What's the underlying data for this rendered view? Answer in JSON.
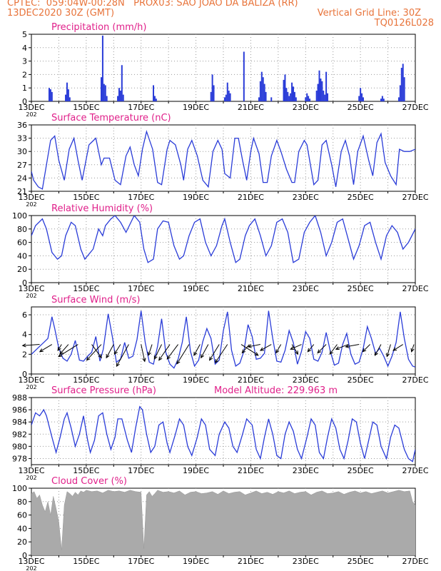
{
  "header": {
    "line1": "CPTEC:  059:04W-00:28N   PROX03: SAO JOAO DA BALIZA (RR)",
    "line2_left": "13DEC2020 30Z (GMT)",
    "line2_right": "Vertical Grid Line: 30Z",
    "line3_right": "TQ0126L028"
  },
  "colors": {
    "header": "#e8743b",
    "title": "#e0208a",
    "series": "#2a3cd8",
    "cloud": "#aaaaaa",
    "wind": "#000000"
  },
  "date_ticks": [
    "13DEC",
    "15DEC",
    "17DEC",
    "19DEC",
    "21DEC",
    "23DEC",
    "25DEC",
    "27DEC"
  ],
  "year_fragment": "202",
  "chart_data": [
    {
      "id": "precip",
      "type": "bar",
      "title": "Precipitation (mm/h)",
      "ylim": [
        0,
        5
      ],
      "yticks": [
        0,
        1,
        2,
        3,
        4,
        5
      ],
      "x_unit": "days since 13DEC 00Z",
      "x": [
        0.65,
        0.7,
        0.75,
        1.25,
        1.3,
        1.35,
        1.4,
        2.55,
        2.6,
        2.65,
        2.7,
        2.75,
        3.15,
        3.2,
        3.25,
        3.3,
        3.35,
        4.45,
        4.5,
        4.55,
        6.55,
        6.6,
        6.65,
        7.05,
        7.1,
        7.15,
        7.2,
        7.25,
        7.75,
        8.3,
        8.35,
        8.4,
        8.45,
        8.5,
        8.55,
        8.75,
        9.2,
        9.25,
        9.3,
        9.35,
        9.4,
        9.45,
        9.5,
        9.55,
        9.6,
        9.65,
        10.0,
        10.05,
        10.1,
        10.15,
        10.4,
        10.45,
        10.5,
        10.55,
        10.6,
        10.65,
        10.7,
        10.75,
        10.8,
        11.95,
        12.0,
        12.05,
        12.1,
        12.75,
        12.8,
        12.85,
        13.4,
        13.45,
        13.5,
        13.55,
        13.6
      ],
      "values": [
        1.0,
        0.9,
        0.7,
        0.5,
        1.4,
        0.9,
        0.3,
        1.8,
        4.9,
        1.3,
        1.2,
        0.4,
        0.4,
        1.0,
        0.8,
        2.7,
        0.5,
        1.2,
        0.4,
        0.2,
        0.7,
        2.0,
        1.2,
        0.3,
        0.5,
        1.4,
        0.8,
        0.6,
        3.7,
        0.3,
        1.5,
        2.2,
        1.8,
        1.3,
        0.7,
        0.3,
        1.6,
        2.0,
        1.0,
        0.7,
        0.4,
        0.6,
        1.4,
        1.1,
        0.7,
        0.3,
        0.3,
        0.6,
        0.4,
        0.2,
        0.8,
        1.3,
        2.3,
        1.7,
        1.5,
        0.8,
        0.5,
        2.2,
        0.6,
        0.4,
        1.0,
        0.6,
        0.3,
        0.2,
        0.4,
        0.2,
        0.3,
        1.2,
        2.5,
        2.8,
        1.8
      ]
    },
    {
      "id": "temp",
      "type": "line",
      "title": "Surface Temperature (nC)",
      "ylim": [
        21,
        36
      ],
      "yticks": [
        21,
        24,
        27,
        30,
        33,
        36
      ],
      "x": [
        0,
        0.08,
        0.25,
        0.4,
        0.55,
        0.7,
        0.85,
        1.0,
        1.2,
        1.38,
        1.55,
        1.7,
        1.85,
        2.1,
        2.35,
        2.55,
        2.65,
        2.85,
        3.05,
        3.25,
        3.45,
        3.6,
        3.75,
        3.9,
        4.05,
        4.2,
        4.42,
        4.6,
        4.75,
        4.95,
        5.05,
        5.25,
        5.45,
        5.55,
        5.7,
        5.85,
        6.05,
        6.25,
        6.45,
        6.62,
        6.8,
        6.95,
        7.05,
        7.25,
        7.42,
        7.55,
        7.7,
        7.85,
        8.0,
        8.1,
        8.3,
        8.45,
        8.6,
        8.75,
        8.95,
        9.1,
        9.3,
        9.5,
        9.6,
        9.75,
        9.95,
        10.05,
        10.3,
        10.45,
        10.6,
        10.75,
        10.95,
        11.1,
        11.3,
        11.45,
        11.6,
        11.75,
        11.9,
        12.1,
        12.3,
        12.45,
        12.6,
        12.75,
        12.9,
        13.1,
        13.3,
        13.42,
        13.6,
        13.8,
        14.0
      ],
      "values": [
        25.5,
        23.5,
        22.0,
        21.5,
        27.0,
        32.5,
        33.5,
        28.0,
        23.5,
        30.5,
        33.0,
        28.0,
        23.5,
        31.5,
        33.0,
        27.0,
        28.5,
        28.5,
        23.5,
        22.5,
        29.0,
        31.0,
        27.0,
        24.5,
        30.5,
        34.5,
        30.5,
        23.0,
        22.5,
        30.5,
        32.5,
        31.5,
        27.0,
        23.5,
        30.5,
        32.5,
        29.0,
        23.5,
        22.0,
        30.0,
        32.5,
        30.5,
        25.0,
        24.0,
        33.0,
        33.0,
        28.0,
        23.5,
        30.0,
        33.0,
        29.5,
        23.0,
        23.0,
        29.0,
        32.5,
        30.0,
        26.0,
        23.0,
        23.0,
        30.0,
        32.5,
        31.5,
        22.5,
        23.5,
        31.5,
        32.5,
        27.0,
        22.0,
        30.0,
        32.5,
        29.0,
        22.5,
        30.0,
        33.5,
        28.0,
        24.5,
        32.0,
        34.0,
        27.5,
        24.5,
        22.5,
        30.5,
        30.0,
        30.0,
        30.5
      ]
    },
    {
      "id": "rh",
      "type": "line",
      "title": "Relative Humidity (%)",
      "ylim": [
        0,
        100
      ],
      "yticks": [
        0,
        20,
        40,
        60,
        80,
        100
      ],
      "x": [
        0,
        0.15,
        0.4,
        0.55,
        0.75,
        0.95,
        1.1,
        1.25,
        1.45,
        1.6,
        1.8,
        1.95,
        2.25,
        2.45,
        2.6,
        2.7,
        2.9,
        3.05,
        3.25,
        3.45,
        3.75,
        3.95,
        4.1,
        4.25,
        4.45,
        4.6,
        4.8,
        5.0,
        5.2,
        5.4,
        5.55,
        5.75,
        5.95,
        6.15,
        6.35,
        6.55,
        6.75,
        6.95,
        7.05,
        7.25,
        7.45,
        7.6,
        7.8,
        7.95,
        8.15,
        8.35,
        8.55,
        8.75,
        8.95,
        9.15,
        9.35,
        9.55,
        9.75,
        9.95,
        10.15,
        10.35,
        10.55,
        10.75,
        10.95,
        11.15,
        11.35,
        11.55,
        11.75,
        11.95,
        12.15,
        12.35,
        12.55,
        12.75,
        12.95,
        13.15,
        13.35,
        13.55,
        13.75,
        14.0
      ],
      "values": [
        70,
        85,
        95,
        80,
        45,
        35,
        40,
        70,
        90,
        85,
        50,
        35,
        50,
        80,
        70,
        85,
        95,
        100,
        90,
        75,
        100,
        90,
        50,
        30,
        35,
        80,
        92,
        90,
        55,
        35,
        40,
        70,
        90,
        95,
        60,
        40,
        55,
        85,
        95,
        60,
        30,
        35,
        70,
        85,
        95,
        70,
        40,
        55,
        90,
        95,
        75,
        30,
        35,
        75,
        90,
        100,
        75,
        40,
        60,
        90,
        95,
        65,
        35,
        55,
        85,
        90,
        60,
        35,
        70,
        85,
        75,
        50,
        60,
        80
      ]
    },
    {
      "id": "wind",
      "type": "line",
      "title": "Surface Wind (m/s)",
      "ylim": [
        0,
        6.8
      ],
      "yticks": [
        0,
        2,
        4,
        6
      ],
      "x": [
        0,
        0.15,
        0.3,
        0.45,
        0.6,
        0.75,
        0.85,
        1.0,
        1.15,
        1.3,
        1.45,
        1.6,
        1.75,
        1.9,
        2.05,
        2.2,
        2.35,
        2.5,
        2.62,
        2.8,
        2.95,
        3.1,
        3.25,
        3.4,
        3.55,
        3.7,
        3.85,
        4.0,
        4.15,
        4.3,
        4.45,
        4.6,
        4.75,
        4.9,
        5.05,
        5.2,
        5.35,
        5.5,
        5.65,
        5.8,
        5.95,
        6.1,
        6.25,
        6.4,
        6.55,
        6.7,
        6.85,
        7.0,
        7.15,
        7.3,
        7.45,
        7.6,
        7.75,
        7.9,
        8.05,
        8.2,
        8.35,
        8.5,
        8.65,
        8.8,
        8.95,
        9.1,
        9.25,
        9.4,
        9.55,
        9.7,
        9.85,
        10.0,
        10.15,
        10.3,
        10.45,
        10.6,
        10.75,
        10.9,
        11.05,
        11.2,
        11.35,
        11.5,
        11.65,
        11.8,
        11.95,
        12.1,
        12.25,
        12.4,
        12.55,
        12.7,
        12.85,
        13.0,
        13.15,
        13.3,
        13.45,
        13.6,
        13.75,
        13.9,
        14.0
      ],
      "values": [
        2.0,
        2.4,
        2.8,
        3.2,
        3.6,
        5.8,
        4.6,
        2.6,
        1.6,
        1.3,
        2.0,
        3.4,
        1.4,
        1.3,
        1.8,
        2.2,
        3.8,
        1.3,
        2.5,
        6.1,
        3.8,
        1.2,
        1.5,
        3.2,
        1.6,
        1.8,
        3.5,
        6.4,
        3.2,
        1.2,
        1.0,
        2.8,
        5.6,
        2.2,
        1.0,
        0.6,
        1.5,
        3.2,
        5.8,
        2.3,
        0.8,
        1.4,
        3.3,
        4.6,
        3.6,
        1.0,
        1.4,
        4.4,
        6.3,
        2.4,
        0.8,
        1.1,
        2.3,
        5.0,
        3.8,
        1.5,
        1.6,
        2.1,
        6.4,
        3.6,
        1.3,
        1.2,
        2.4,
        4.4,
        3.2,
        1.0,
        2.3,
        4.3,
        3.6,
        1.5,
        1.3,
        2.2,
        4.2,
        2.3,
        0.9,
        1.1,
        3.0,
        4.1,
        2.0,
        1.0,
        1.2,
        2.6,
        4.8,
        3.6,
        2.1,
        2.6,
        1.8,
        0.8,
        1.8,
        3.2,
        6.3,
        3.6,
        1.5,
        0.8,
        0.7
      ],
      "vectors": [
        {
          "x": 0.3,
          "u": 1.4,
          "v": 0.1
        },
        {
          "x": 0.75,
          "u": 1.0,
          "v": 0.6
        },
        {
          "x": 1.1,
          "u": 0.3,
          "v": 0.5
        },
        {
          "x": 1.35,
          "u": 0.7,
          "v": 0.8
        },
        {
          "x": 1.7,
          "u": 1.6,
          "v": 1.0
        },
        {
          "x": 2.2,
          "u": -0.8,
          "v": 1.1
        },
        {
          "x": 2.55,
          "u": 1.2,
          "v": 1.3
        },
        {
          "x": 3.0,
          "u": 0.6,
          "v": 1.1
        },
        {
          "x": 3.25,
          "u": 0.5,
          "v": 0.8
        },
        {
          "x": 3.55,
          "u": 1.0,
          "v": 1.8
        },
        {
          "x": 4.0,
          "u": -0.3,
          "v": 1.4
        },
        {
          "x": 4.4,
          "u": 0.3,
          "v": 0.9
        },
        {
          "x": 4.75,
          "u": 0.6,
          "v": 1.2
        },
        {
          "x": 5.05,
          "u": 0.9,
          "v": 1.3
        },
        {
          "x": 5.35,
          "u": 0.9,
          "v": 1.2
        },
        {
          "x": 5.75,
          "u": 1.0,
          "v": 1.6
        },
        {
          "x": 6.15,
          "u": 0.5,
          "v": 0.9
        },
        {
          "x": 6.45,
          "u": 0.6,
          "v": 1.1
        },
        {
          "x": 6.85,
          "u": 0.8,
          "v": 1.3
        },
        {
          "x": 7.15,
          "u": 1.0,
          "v": 1.5
        },
        {
          "x": 7.65,
          "u": -1.4,
          "v": 0.9
        },
        {
          "x": 7.95,
          "u": 0.6,
          "v": 0.7
        },
        {
          "x": 8.35,
          "u": 1.0,
          "v": 0.2
        },
        {
          "x": 8.75,
          "u": 0.9,
          "v": 0.5
        },
        {
          "x": 9.1,
          "u": 0.4,
          "v": 0.7
        },
        {
          "x": 9.5,
          "u": -0.5,
          "v": 0.8
        },
        {
          "x": 9.85,
          "u": 0.9,
          "v": 0.4
        },
        {
          "x": 10.3,
          "u": 0.5,
          "v": 0.6
        },
        {
          "x": 10.75,
          "u": 0.7,
          "v": 0.7
        },
        {
          "x": 11.15,
          "u": 0.6,
          "v": 0.8
        },
        {
          "x": 11.55,
          "u": 1.0,
          "v": 0.4
        },
        {
          "x": 11.95,
          "u": 1.1,
          "v": 0.2
        },
        {
          "x": 12.35,
          "u": 0.6,
          "v": 0.6
        },
        {
          "x": 12.75,
          "u": 0.5,
          "v": 0.9
        },
        {
          "x": 13.1,
          "u": 0.3,
          "v": 1.0
        },
        {
          "x": 13.55,
          "u": 0.8,
          "v": 0.5
        },
        {
          "x": 13.95,
          "u": 0.2,
          "v": 0.6
        }
      ]
    },
    {
      "id": "pres",
      "type": "line",
      "title": "Surface Pressure (hPa)",
      "annotation": "Model Altitude: 229.963 m",
      "ylim": [
        977,
        988
      ],
      "yticks": [
        978,
        980,
        982,
        984,
        986,
        988
      ],
      "x": [
        0,
        0.15,
        0.3,
        0.45,
        0.55,
        0.75,
        0.9,
        1.05,
        1.2,
        1.3,
        1.45,
        1.6,
        1.75,
        1.9,
        2.05,
        2.15,
        2.3,
        2.45,
        2.6,
        2.75,
        2.9,
        3.05,
        3.15,
        3.3,
        3.5,
        3.65,
        3.8,
        3.95,
        4.05,
        4.2,
        4.35,
        4.5,
        4.65,
        4.8,
        4.95,
        5.05,
        5.25,
        5.4,
        5.55,
        5.7,
        5.85,
        6.05,
        6.2,
        6.35,
        6.5,
        6.7,
        6.85,
        7.05,
        7.2,
        7.35,
        7.5,
        7.7,
        7.85,
        8.05,
        8.2,
        8.35,
        8.5,
        8.65,
        8.8,
        8.95,
        9.1,
        9.25,
        9.4,
        9.55,
        9.7,
        9.85,
        10.05,
        10.2,
        10.35,
        10.5,
        10.65,
        10.8,
        10.95,
        11.1,
        11.25,
        11.4,
        11.55,
        11.7,
        11.85,
        12.0,
        12.15,
        12.3,
        12.45,
        12.6,
        12.75,
        12.95,
        13.1,
        13.25,
        13.4,
        13.6,
        13.75,
        13.9,
        14.0
      ],
      "values": [
        983.5,
        985.5,
        985.0,
        986.0,
        985.0,
        981.5,
        979.0,
        981.5,
        984.5,
        985.5,
        983.0,
        980.0,
        982.0,
        985.0,
        981.0,
        979.0,
        981.0,
        985.0,
        985.5,
        982.0,
        979.5,
        981.5,
        984.5,
        984.5,
        981.0,
        979.0,
        983.0,
        986.5,
        986.0,
        982.0,
        979.0,
        980.0,
        983.5,
        984.0,
        980.5,
        979.0,
        982.0,
        984.5,
        983.5,
        980.0,
        978.5,
        981.5,
        984.5,
        983.5,
        979.5,
        978.5,
        982.0,
        984.0,
        983.0,
        980.0,
        979.0,
        982.0,
        984.5,
        983.5,
        979.5,
        978.0,
        981.5,
        984.5,
        982.0,
        978.5,
        978.0,
        982.0,
        984.0,
        982.5,
        979.5,
        978.0,
        981.5,
        984.5,
        983.5,
        979.0,
        978.0,
        981.5,
        984.5,
        983.0,
        979.5,
        978.0,
        981.0,
        984.5,
        984.0,
        980.5,
        978.0,
        981.0,
        984.0,
        983.5,
        980.0,
        978.0,
        981.5,
        983.5,
        983.0,
        979.5,
        978.0,
        977.5,
        979.5
      ]
    },
    {
      "id": "cloud",
      "type": "area",
      "title": "Cloud Cover (%)",
      "ylim": [
        0,
        100
      ],
      "yticks": [
        0,
        20,
        40,
        60,
        80,
        100
      ],
      "x": [
        0,
        0.1,
        0.2,
        0.3,
        0.4,
        0.5,
        0.6,
        0.7,
        0.8,
        0.9,
        1.0,
        1.1,
        1.2,
        1.3,
        1.4,
        1.5,
        1.6,
        1.7,
        1.8,
        1.9,
        2.0,
        2.2,
        2.4,
        2.6,
        2.8,
        3.0,
        3.2,
        3.4,
        3.6,
        3.8,
        4.0,
        4.1,
        4.2,
        4.3,
        4.4,
        4.5,
        4.6,
        4.8,
        5.0,
        5.2,
        5.4,
        5.6,
        5.8,
        6.0,
        6.2,
        6.4,
        6.6,
        6.8,
        7.0,
        7.2,
        7.4,
        7.6,
        7.8,
        8.0,
        8.2,
        8.4,
        8.6,
        8.8,
        9.0,
        9.2,
        9.4,
        9.6,
        9.8,
        10.0,
        10.2,
        10.4,
        10.6,
        10.8,
        11.0,
        11.2,
        11.4,
        11.6,
        11.8,
        12.0,
        12.2,
        12.4,
        12.6,
        12.8,
        13.0,
        13.2,
        13.4,
        13.6,
        13.8,
        13.9,
        14.0
      ],
      "values": [
        92,
        95,
        85,
        90,
        75,
        65,
        80,
        60,
        88,
        70,
        50,
        8,
        75,
        95,
        92,
        88,
        94,
        90,
        96,
        94,
        97,
        95,
        96,
        93,
        97,
        95,
        96,
        94,
        97,
        95,
        94,
        10,
        90,
        95,
        88,
        92,
        97,
        94,
        95,
        93,
        96,
        90,
        94,
        95,
        92,
        93,
        95,
        91,
        96,
        92,
        94,
        95,
        90,
        93,
        96,
        92,
        94,
        91,
        95,
        93,
        96,
        92,
        94,
        95,
        90,
        94,
        96,
        92,
        93,
        95,
        91,
        94,
        96,
        93,
        95,
        92,
        94,
        96,
        93,
        95,
        97,
        95,
        96,
        80,
        75
      ]
    }
  ]
}
